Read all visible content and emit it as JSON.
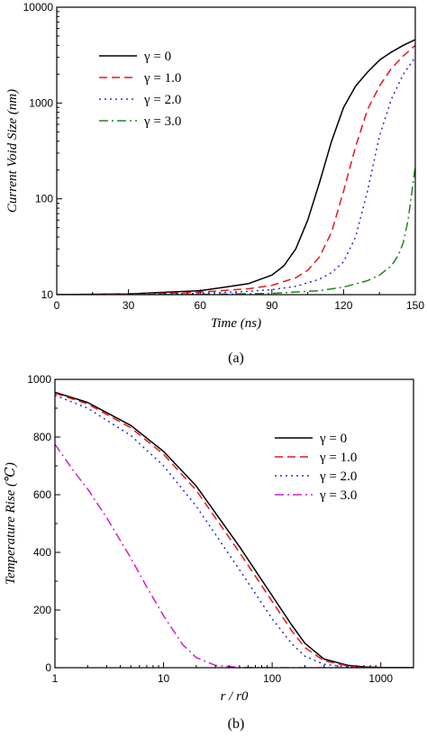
{
  "chart_data": [
    {
      "type": "line",
      "panel_label": "(a)",
      "xlabel": "Time (ns)",
      "ylabel": "Current Void Size (nm)",
      "xlim": [
        0,
        150
      ],
      "ylim": [
        10,
        10000
      ],
      "yscale": "log",
      "grid": false,
      "legend": "top-left",
      "x_ticks": [
        "0",
        "30",
        "60",
        "90",
        "120",
        "150"
      ],
      "y_ticks": [
        "10",
        "100",
        "1000",
        "10000"
      ],
      "series": [
        {
          "name": "γ = 0",
          "color": "#000000",
          "dash": "solid",
          "x": [
            0,
            30,
            60,
            80,
            90,
            95,
            100,
            105,
            110,
            115,
            120,
            125,
            130,
            135,
            140,
            145,
            150
          ],
          "y": [
            10,
            10.2,
            11,
            13,
            16,
            20,
            30,
            60,
            150,
            400,
            900,
            1500,
            2100,
            2800,
            3400,
            4000,
            4600
          ]
        },
        {
          "name": "γ = 1.0",
          "color": "#e8161b",
          "dash": "dashed",
          "x": [
            0,
            30,
            60,
            80,
            90,
            100,
            105,
            110,
            115,
            120,
            125,
            130,
            135,
            140,
            145,
            150
          ],
          "y": [
            10,
            10.1,
            10.6,
            11.5,
            12.5,
            15,
            18,
            25,
            45,
            120,
            350,
            850,
            1500,
            2300,
            3100,
            4000
          ]
        },
        {
          "name": "γ = 2.0",
          "color": "#2b2bd6",
          "dash": "dotted",
          "x": [
            0,
            30,
            60,
            80,
            90,
            100,
            110,
            115,
            120,
            125,
            130,
            135,
            140,
            145,
            150
          ],
          "y": [
            10,
            10.05,
            10.3,
            10.8,
            11.3,
            12.2,
            14.5,
            17,
            22,
            40,
            120,
            450,
            1100,
            2000,
            3000
          ]
        },
        {
          "name": "γ = 3.0",
          "color": "#1a8a1a",
          "dash": "dashdot",
          "x": [
            0,
            30,
            60,
            90,
            110,
            120,
            130,
            135,
            140,
            143,
            145,
            147,
            149,
            150
          ],
          "y": [
            10,
            10,
            10.05,
            10.3,
            11,
            12,
            14,
            16,
            20,
            26,
            35,
            60,
            140,
            220
          ]
        }
      ]
    },
    {
      "type": "line",
      "panel_label": "(b)",
      "xlabel": "r / r0",
      "ylabel": "Temperature Rise (℃)",
      "xlim": [
        1,
        2000
      ],
      "ylim": [
        0,
        1000
      ],
      "xscale": "log",
      "grid": false,
      "legend": "top-right",
      "x_ticks": [
        "1",
        "10",
        "100",
        "1000"
      ],
      "y_ticks": [
        "0",
        "200",
        "400",
        "600",
        "800",
        "1000"
      ],
      "series": [
        {
          "name": "γ = 0",
          "color": "#000000",
          "dash": "solid",
          "x": [
            1,
            2,
            5,
            10,
            20,
            50,
            100,
            150,
            200,
            300,
            500,
            700,
            1000,
            2000
          ],
          "y": [
            955,
            920,
            840,
            750,
            630,
            420,
            250,
            150,
            85,
            30,
            8,
            3,
            1,
            0
          ]
        },
        {
          "name": "γ = 1.0",
          "color": "#e8161b",
          "dash": "dashed",
          "x": [
            1,
            2,
            5,
            10,
            20,
            50,
            100,
            150,
            200,
            300,
            500,
            700,
            1000,
            2000
          ],
          "y": [
            952,
            915,
            832,
            740,
            615,
            400,
            230,
            130,
            70,
            24,
            6,
            2,
            1,
            0
          ]
        },
        {
          "name": "γ = 2.0",
          "color": "#2b2bd6",
          "dash": "dotted",
          "x": [
            1,
            2,
            5,
            10,
            20,
            50,
            100,
            150,
            200,
            300,
            500,
            700,
            1000,
            2000
          ],
          "y": [
            945,
            900,
            805,
            700,
            560,
            340,
            170,
            85,
            40,
            12,
            3,
            1,
            0,
            0
          ]
        },
        {
          "name": "γ = 3.0",
          "color": "#d21bd2",
          "dash": "dashdot",
          "x": [
            1,
            1.5,
            2,
            3,
            5,
            7,
            10,
            15,
            20,
            30,
            50,
            100,
            1000,
            2000
          ],
          "y": [
            775,
            680,
            620,
            520,
            380,
            280,
            180,
            80,
            35,
            8,
            1,
            0,
            0,
            0
          ]
        }
      ]
    }
  ]
}
